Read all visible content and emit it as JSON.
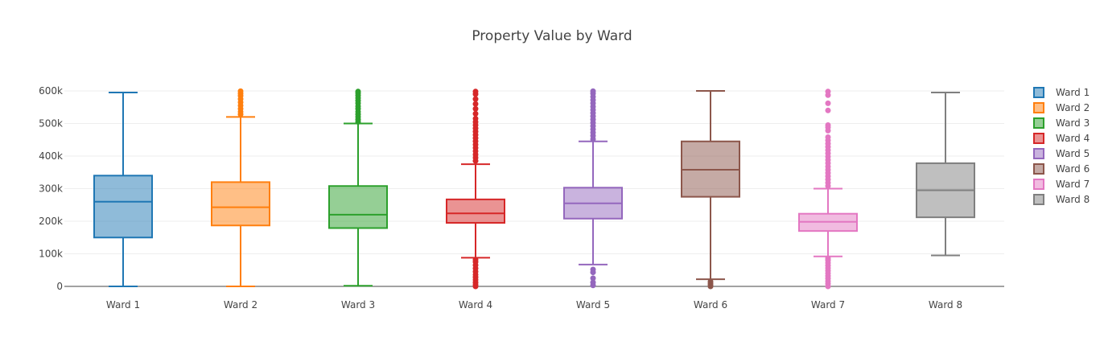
{
  "chart_data": {
    "type": "box",
    "title": "Property Value by Ward",
    "xlabel": "",
    "ylabel": "",
    "ylim": [
      0,
      600000
    ],
    "yticks": [
      {
        "value": 0,
        "label": "0"
      },
      {
        "value": 100000,
        "label": "100k"
      },
      {
        "value": 200000,
        "label": "200k"
      },
      {
        "value": 300000,
        "label": "300k"
      },
      {
        "value": 400000,
        "label": "400k"
      },
      {
        "value": 500000,
        "label": "500k"
      },
      {
        "value": 600000,
        "label": "600k"
      }
    ],
    "grid": true,
    "legend_position": "right",
    "series": [
      {
        "name": "Ward 1",
        "category": "Ward 1",
        "color": "#1f77b4",
        "whisker_low": 0,
        "q1": 150000,
        "median": 260000,
        "q3": 340000,
        "whisker_high": 595000,
        "outliers": []
      },
      {
        "name": "Ward 2",
        "category": "Ward 2",
        "color": "#ff7f0e",
        "whisker_low": 0,
        "q1": 187000,
        "median": 243000,
        "q3": 320000,
        "whisker_high": 520000,
        "outliers": [
          528000,
          536000,
          545000,
          555000,
          565000,
          575000,
          585000,
          592000,
          599000
        ]
      },
      {
        "name": "Ward 3",
        "category": "Ward 3",
        "color": "#2ca02c",
        "whisker_low": 2000,
        "q1": 179000,
        "median": 220000,
        "q3": 308000,
        "whisker_high": 500000,
        "outliers": [
          505000,
          512000,
          520000,
          528000,
          536000,
          545000,
          553000,
          562000,
          570000,
          578000,
          586000,
          593000,
          598000
        ]
      },
      {
        "name": "Ward 4",
        "category": "Ward 4",
        "color": "#d62728",
        "whisker_low": 88000,
        "q1": 195000,
        "median": 224000,
        "q3": 267000,
        "whisker_high": 375000,
        "outliers": [
          0,
          5000,
          12000,
          20000,
          28000,
          36000,
          45000,
          55000,
          65000,
          75000,
          82000,
          385000,
          395000,
          405000,
          415000,
          425000,
          435000,
          445000,
          455000,
          465000,
          475000,
          485000,
          495000,
          505000,
          515000,
          530000,
          545000,
          560000,
          575000,
          590000,
          598000
        ]
      },
      {
        "name": "Ward 5",
        "category": "Ward 5",
        "color": "#9467bd",
        "whisker_low": 67000,
        "q1": 208000,
        "median": 255000,
        "q3": 303000,
        "whisker_high": 445000,
        "outliers": [
          3000,
          12000,
          25000,
          43000,
          52000,
          452000,
          462000,
          472000,
          482000,
          492000,
          502000,
          512000,
          522000,
          532000,
          542000,
          552000,
          562000,
          572000,
          582000,
          592000,
          599000
        ]
      },
      {
        "name": "Ward 6",
        "category": "Ward 6",
        "color": "#8c564b",
        "whisker_low": 22000,
        "q1": 275000,
        "median": 358000,
        "q3": 445000,
        "whisker_high": 600000,
        "outliers": [
          0,
          5000,
          10000,
          15000
        ]
      },
      {
        "name": "Ward 7",
        "category": "Ward 7",
        "color": "#e377c2",
        "whisker_low": 92000,
        "q1": 170000,
        "median": 198000,
        "q3": 223000,
        "whisker_high": 300000,
        "outliers": [
          0,
          8000,
          16000,
          24000,
          32000,
          40000,
          48000,
          56000,
          64000,
          72000,
          80000,
          86000,
          308000,
          318000,
          328000,
          338000,
          348000,
          358000,
          368000,
          378000,
          388000,
          398000,
          408000,
          418000,
          428000,
          438000,
          448000,
          458000,
          478000,
          488000,
          495000,
          540000,
          562000,
          587000,
          598000
        ]
      },
      {
        "name": "Ward 8",
        "category": "Ward 8",
        "color": "#7f7f7f",
        "whisker_low": 95000,
        "q1": 212000,
        "median": 295000,
        "q3": 378000,
        "whisker_high": 595000,
        "outliers": []
      }
    ]
  }
}
